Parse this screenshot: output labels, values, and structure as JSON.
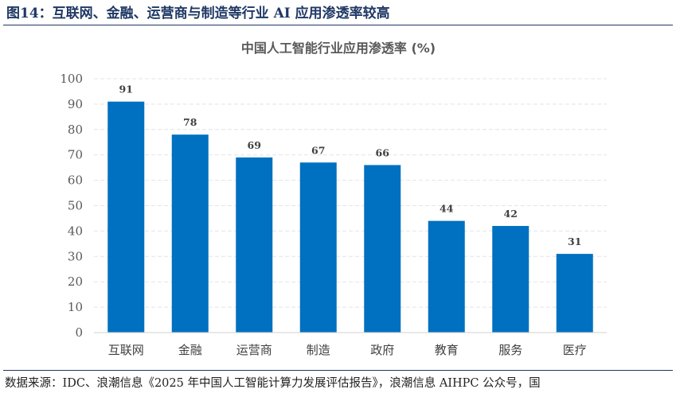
{
  "figure": {
    "title": "图14：互联网、金融、运营商与制造等行业 AI 应用渗透率较高",
    "source": "数据来源：IDC、浪潮信息《2025 年中国人工智能计算力发展评估报告》，浪潮信息 AIHPC 公众号，国"
  },
  "chart_data": {
    "type": "bar",
    "title": "中国人工智能行业应用渗透率 (%)",
    "categories": [
      "互联网",
      "金融",
      "运营商",
      "制造",
      "政府",
      "教育",
      "服务",
      "医疗"
    ],
    "values": [
      91,
      78,
      69,
      67,
      66,
      44,
      42,
      31
    ],
    "data_labels": [
      "91",
      "78",
      "69",
      "67",
      "66",
      "44",
      "42",
      "31"
    ],
    "yticks": [
      "0",
      "10",
      "20",
      "30",
      "40",
      "50",
      "60",
      "70",
      "80",
      "90",
      "100"
    ],
    "ylim": [
      0,
      100
    ],
    "grid": true,
    "bar_color": "#0070c0",
    "grid_color": "#e4e4e4"
  }
}
